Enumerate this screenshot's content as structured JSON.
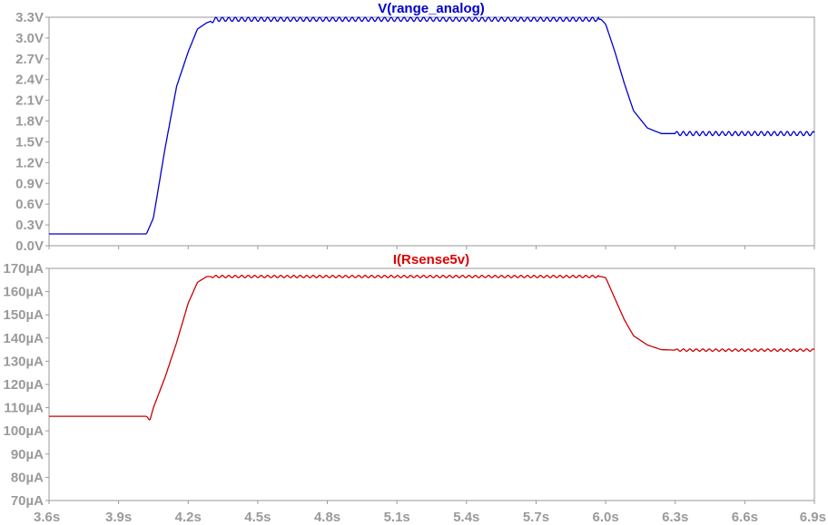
{
  "chart_data": [
    {
      "type": "line",
      "title": "V(range_analog)",
      "title_color": "#0000cc",
      "series": [
        {
          "name": "V(range_analog)",
          "color": "#0000cc",
          "x": [
            3.6,
            4.02,
            4.05,
            4.1,
            4.15,
            4.2,
            4.24,
            4.28,
            4.32,
            5.98,
            6.0,
            6.04,
            6.08,
            6.12,
            6.18,
            6.24,
            6.3,
            6.9
          ],
          "y": [
            0.17,
            0.17,
            0.4,
            1.4,
            2.3,
            2.8,
            3.13,
            3.22,
            3.27,
            3.27,
            3.2,
            2.8,
            2.35,
            1.95,
            1.7,
            1.62,
            1.62,
            1.62
          ],
          "ripple": 0.03
        }
      ],
      "x_range": [
        3.6,
        6.9
      ],
      "y_range": [
        0.0,
        3.3
      ],
      "y_ticks": [
        "0.0V",
        "0.3V",
        "0.6V",
        "0.9V",
        "1.2V",
        "1.5V",
        "1.8V",
        "2.1V",
        "2.4V",
        "2.7V",
        "3.0V",
        "3.3V"
      ],
      "grid": false
    },
    {
      "type": "line",
      "title": "I(Rsense5v)",
      "title_color": "#dd0000",
      "series": [
        {
          "name": "I(Rsense5v)",
          "color": "#cc0000",
          "x": [
            3.6,
            4.02,
            4.035,
            4.05,
            4.1,
            4.15,
            4.2,
            4.24,
            4.28,
            5.98,
            6.0,
            6.04,
            6.08,
            6.12,
            6.18,
            6.24,
            6.3,
            6.9
          ],
          "y": [
            106.3,
            106.3,
            104.5,
            110,
            123,
            138,
            155,
            164,
            166.5,
            166.5,
            166,
            157,
            148,
            141,
            137,
            135,
            134.8,
            134.8
          ],
          "ripple": 0.5
        }
      ],
      "x_range": [
        3.6,
        6.9
      ],
      "y_range": [
        70,
        170
      ],
      "y_ticks": [
        "70µA",
        "80µA",
        "90µA",
        "100µA",
        "110µA",
        "120µA",
        "130µA",
        "140µA",
        "150µA",
        "160µA",
        "170µA"
      ],
      "grid": false
    }
  ],
  "x_ticks": [
    "3.6s",
    "3.9s",
    "4.2s",
    "4.5s",
    "4.8s",
    "5.1s",
    "5.4s",
    "5.7s",
    "6.0s",
    "6.3s",
    "6.6s",
    "6.9s"
  ],
  "x_tick_values": [
    3.6,
    3.9,
    4.2,
    4.5,
    4.8,
    5.1,
    5.4,
    5.7,
    6.0,
    6.3,
    6.6,
    6.9
  ],
  "axis_color": "#9a9a9a"
}
